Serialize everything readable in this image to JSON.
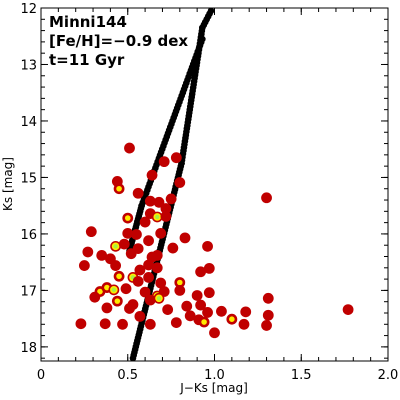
{
  "chart_data": {
    "type": "scatter",
    "xlabel": "J−Ks [mag]",
    "ylabel": "Ks [mag]",
    "xlim": [
      0.0,
      2.0
    ],
    "ylim": [
      18.25,
      12.0
    ],
    "y_inverted": true,
    "x_ticks": [
      {
        "value": 0.0,
        "label": "0"
      },
      {
        "value": 0.5,
        "label": "0.5"
      },
      {
        "value": 1.0,
        "label": "1.0"
      },
      {
        "value": 1.5,
        "label": "1.5"
      },
      {
        "value": 2.0,
        "label": "2.0"
      }
    ],
    "y_ticks": [
      {
        "value": 12,
        "label": "12"
      },
      {
        "value": 13,
        "label": "13"
      },
      {
        "value": 14,
        "label": "14"
      },
      {
        "value": 15,
        "label": "15"
      },
      {
        "value": 16,
        "label": "16"
      },
      {
        "value": 17,
        "label": "17"
      },
      {
        "value": 18,
        "label": "18"
      }
    ],
    "annotations": [
      "Minni144",
      "[Fe/H]=−0.9 dex",
      "t=11 Gyr"
    ],
    "colors": {
      "star_outer": "#c00000",
      "star_yellow": "#ffea00",
      "star_green": "#a8f040",
      "isochrone": "#000000"
    },
    "stars": [
      [
        0.78,
        14.65,
        0
      ],
      [
        0.71,
        14.72,
        0
      ],
      [
        0.51,
        14.48,
        0
      ],
      [
        0.64,
        14.96,
        0
      ],
      [
        0.8,
        15.09,
        0
      ],
      [
        0.44,
        15.07,
        0
      ],
      [
        0.45,
        15.2,
        1
      ],
      [
        0.56,
        15.28,
        0
      ],
      [
        0.63,
        15.42,
        0
      ],
      [
        0.68,
        15.44,
        0
      ],
      [
        0.75,
        15.38,
        0
      ],
      [
        0.72,
        15.55,
        0
      ],
      [
        0.63,
        15.64,
        0
      ],
      [
        0.5,
        15.72,
        1
      ],
      [
        0.6,
        15.79,
        0
      ],
      [
        0.67,
        15.7,
        2
      ],
      [
        0.72,
        15.69,
        0
      ],
      [
        1.3,
        15.36,
        0
      ],
      [
        0.29,
        15.96,
        0
      ],
      [
        0.5,
        15.99,
        0
      ],
      [
        0.55,
        16.01,
        0
      ],
      [
        0.69,
        15.99,
        0
      ],
      [
        0.83,
        16.07,
        0
      ],
      [
        0.43,
        16.22,
        2
      ],
      [
        0.48,
        16.18,
        0
      ],
      [
        0.56,
        16.26,
        0
      ],
      [
        0.62,
        16.12,
        0
      ],
      [
        0.76,
        16.25,
        0
      ],
      [
        0.96,
        16.22,
        0
      ],
      [
        0.27,
        16.32,
        0
      ],
      [
        0.35,
        16.38,
        0
      ],
      [
        0.4,
        16.44,
        0
      ],
      [
        0.52,
        16.35,
        0
      ],
      [
        0.64,
        16.41,
        0
      ],
      [
        0.43,
        16.56,
        0
      ],
      [
        0.57,
        16.64,
        0
      ],
      [
        0.62,
        16.55,
        0
      ],
      [
        0.67,
        16.6,
        0
      ],
      [
        0.92,
        16.67,
        0
      ],
      [
        0.25,
        16.56,
        0
      ],
      [
        0.45,
        16.75,
        1
      ],
      [
        0.53,
        16.77,
        2
      ],
      [
        0.56,
        16.84,
        0
      ],
      [
        0.62,
        16.77,
        0
      ],
      [
        0.69,
        16.87,
        0
      ],
      [
        0.8,
        16.86,
        1
      ],
      [
        0.97,
        16.61,
        0
      ],
      [
        0.34,
        17.02,
        1
      ],
      [
        0.38,
        16.95,
        1
      ],
      [
        0.42,
        16.99,
        2
      ],
      [
        0.49,
        16.97,
        0
      ],
      [
        0.6,
        17.03,
        0
      ],
      [
        0.67,
        17.1,
        2
      ],
      [
        0.71,
        17.02,
        0
      ],
      [
        0.8,
        17.0,
        0
      ],
      [
        0.9,
        17.09,
        0
      ],
      [
        0.97,
        17.04,
        0
      ],
      [
        0.31,
        17.12,
        0
      ],
      [
        0.44,
        17.19,
        1
      ],
      [
        0.53,
        17.25,
        0
      ],
      [
        0.63,
        17.17,
        0
      ],
      [
        0.68,
        17.14,
        2
      ],
      [
        0.84,
        17.28,
        0
      ],
      [
        0.92,
        17.26,
        0
      ],
      [
        1.31,
        17.14,
        0
      ],
      [
        0.38,
        17.31,
        0
      ],
      [
        0.51,
        17.32,
        0
      ],
      [
        0.57,
        17.46,
        0
      ],
      [
        0.73,
        17.34,
        0
      ],
      [
        0.86,
        17.45,
        0
      ],
      [
        0.96,
        17.39,
        0
      ],
      [
        1.04,
        17.37,
        0
      ],
      [
        1.18,
        17.38,
        0
      ],
      [
        1.31,
        17.44,
        0
      ],
      [
        1.77,
        17.34,
        0
      ],
      [
        0.23,
        17.59,
        0
      ],
      [
        0.37,
        17.59,
        0
      ],
      [
        0.47,
        17.6,
        0
      ],
      [
        0.63,
        17.6,
        0
      ],
      [
        0.78,
        17.57,
        0
      ],
      [
        0.91,
        17.52,
        0
      ],
      [
        0.94,
        17.56,
        1
      ],
      [
        1.1,
        17.51,
        1
      ],
      [
        1.17,
        17.6,
        0
      ],
      [
        1.3,
        17.62,
        0
      ],
      [
        1.0,
        17.75,
        0
      ],
      [
        0.67,
        16.38,
        0
      ]
    ],
    "isochrone_segments": [
      {
        "from": [
          0.53,
          18.2
        ],
        "to": [
          0.81,
          14.75
        ],
        "n": 68
      },
      {
        "from": [
          0.81,
          14.75
        ],
        "to": [
          0.93,
          12.35
        ],
        "n": 44
      },
      {
        "from": [
          0.93,
          12.35
        ],
        "to": [
          0.98,
          12.05
        ],
        "n": 7
      },
      {
        "from": [
          0.51,
          16.3
        ],
        "to": [
          0.58,
          15.5
        ],
        "n": 18
      },
      {
        "from": [
          0.58,
          15.5
        ],
        "to": [
          0.93,
          12.55
        ],
        "n": 54
      }
    ]
  }
}
